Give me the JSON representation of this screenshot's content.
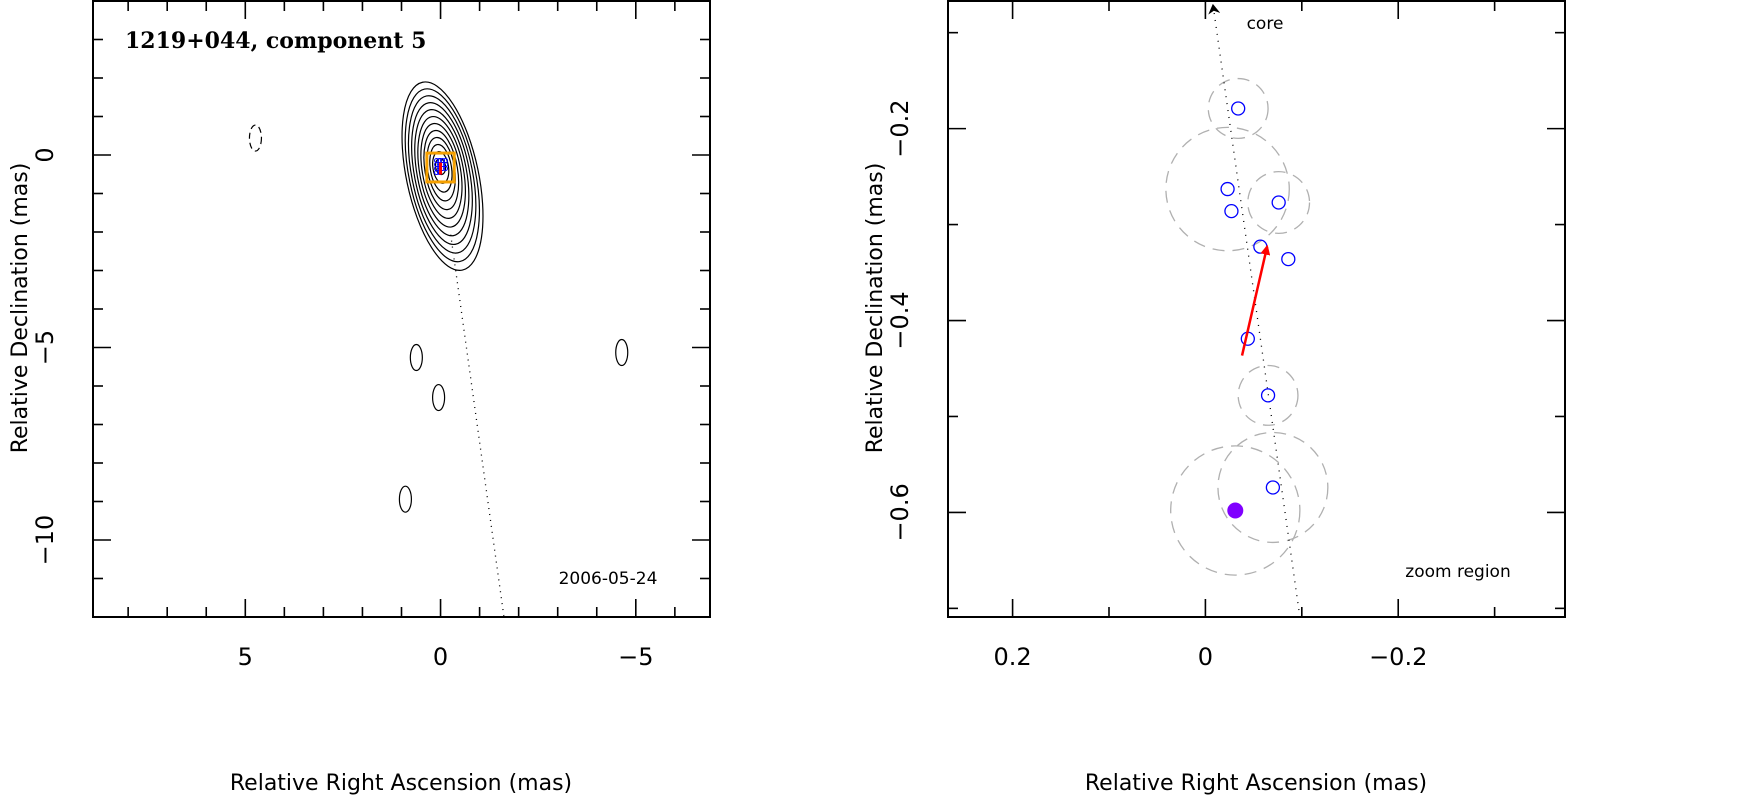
{
  "chart_data": [
    {
      "type": "contour",
      "title": "1219+044, component 5",
      "annotation": "2006-05-24",
      "xlabel": "Relative Right Ascension (mas)",
      "ylabel": "Relative Declination (mas)",
      "xlim": [
        8.9,
        -6.9
      ],
      "ylim": [
        -12,
        4
      ],
      "xticks": [
        5,
        0,
        -5
      ],
      "yticks": [
        0,
        -5,
        -10
      ],
      "grid": false,
      "core_contour_center": [
        0,
        -0.3
      ],
      "isolated_contours": [
        {
          "x": 4.74,
          "y": 0.44,
          "negative": true
        },
        {
          "x": 0.62,
          "y": -5.26,
          "negative": false
        },
        {
          "x": 0.05,
          "y": -6.3,
          "negative": false
        },
        {
          "x": 0.9,
          "y": -8.94,
          "negative": false
        },
        {
          "x": -4.64,
          "y": -5.13,
          "negative": false
        }
      ],
      "trajectory_line": [
        [
          -0.26,
          -2.07
        ],
        [
          -1.62,
          -11.97
        ]
      ],
      "zoom_box": {
        "x": [
          0.35,
          -0.35
        ],
        "y": [
          0.05,
          -0.7
        ]
      },
      "colors": {
        "contours": "#000000",
        "zoom_box": "#f5a000",
        "points": "#0000ff",
        "highlight": "#ff0000"
      }
    },
    {
      "type": "scatter",
      "annotations": {
        "core": "core",
        "zoom": "zoom region"
      },
      "xlabel": "Relative Right Ascension (mas)",
      "ylabel": "Relative Declination (mas)",
      "xlim": [
        0.267,
        -0.373
      ],
      "ylim": [
        -0.709,
        -0.067
      ],
      "xticks": [
        0.2,
        0,
        -0.2
      ],
      "yticks": [
        -0.2,
        -0.4,
        -0.6
      ],
      "grid": false,
      "points": [
        {
          "x": -0.034,
          "y": -0.179
        },
        {
          "x": -0.023,
          "y": -0.263
        },
        {
          "x": -0.027,
          "y": -0.286
        },
        {
          "x": -0.076,
          "y": -0.277
        },
        {
          "x": -0.057,
          "y": -0.323
        },
        {
          "x": -0.086,
          "y": -0.336
        },
        {
          "x": -0.044,
          "y": -0.419
        },
        {
          "x": -0.065,
          "y": -0.478
        },
        {
          "x": -0.07,
          "y": -0.574
        }
      ],
      "reference_point": {
        "x": -0.031,
        "y": -0.598
      },
      "error_circles": [
        {
          "x": -0.034,
          "y": -0.179,
          "r": 0.031
        },
        {
          "x": -0.023,
          "y": -0.263,
          "r": 0.064
        },
        {
          "x": -0.076,
          "y": -0.277,
          "r": 0.032
        },
        {
          "x": -0.065,
          "y": -0.478,
          "r": 0.031
        },
        {
          "x": -0.031,
          "y": -0.598,
          "r": 0.067
        },
        {
          "x": -0.07,
          "y": -0.574,
          "r": 0.057
        }
      ],
      "motion_vector": [
        [
          -0.038,
          -0.4365
        ],
        [
          -0.064,
          -0.323
        ]
      ],
      "core_direction_line": [
        [
          -0.008,
          -0.072
        ],
        [
          -0.098,
          -0.709
        ]
      ],
      "colors": {
        "points": "#0000ff",
        "reference": "#8000ff",
        "vector": "#ff0000",
        "circles": "#b0b0b0"
      }
    }
  ]
}
